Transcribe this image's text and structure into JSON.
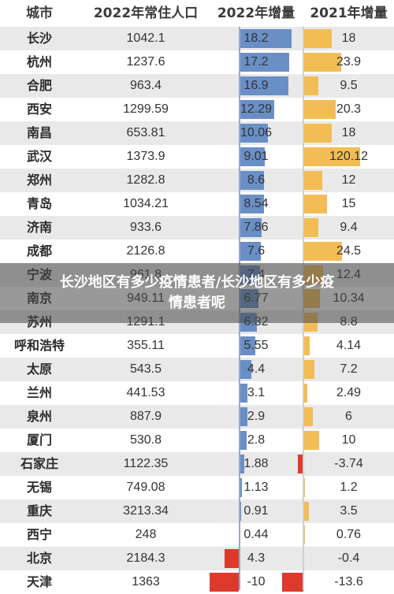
{
  "overlay_title": "长沙地区有多少疫情患者/长沙地区有多少疫情患者呢",
  "chart_data": {
    "type": "table",
    "columns": [
      "城市",
      "2022年常住人口",
      "2022年增量",
      "2021年增量"
    ],
    "rows": [
      {
        "city": "长沙",
        "pop_2022": "1042.1",
        "inc_2022": 18.2,
        "inc_2021": 18
      },
      {
        "city": "杭州",
        "pop_2022": "1237.6",
        "inc_2022": 17.2,
        "inc_2021": 23.9
      },
      {
        "city": "合肥",
        "pop_2022": "963.4",
        "inc_2022": 16.9,
        "inc_2021": 9.5
      },
      {
        "city": "西安",
        "pop_2022": "1299.59",
        "inc_2022": 12.29,
        "inc_2021": 20.3
      },
      {
        "city": "南昌",
        "pop_2022": "653.81",
        "inc_2022": 10.06,
        "inc_2021": 18
      },
      {
        "city": "武汉",
        "pop_2022": "1373.9",
        "inc_2022": 9.01,
        "inc_2021": 120.12
      },
      {
        "city": "郑州",
        "pop_2022": "1282.8",
        "inc_2022": 8.6,
        "inc_2021": 12
      },
      {
        "city": "青岛",
        "pop_2022": "1034.21",
        "inc_2022": 8.54,
        "inc_2021": 15
      },
      {
        "city": "济南",
        "pop_2022": "933.6",
        "inc_2022": 7.86,
        "inc_2021": 9.4
      },
      {
        "city": "成都",
        "pop_2022": "2126.8",
        "inc_2022": 7.6,
        "inc_2021": 24.5
      },
      {
        "city": "宁波",
        "pop_2022": "961.8",
        "inc_2022": 7.4,
        "inc_2021": 12.4
      },
      {
        "city": "南京",
        "pop_2022": "949.11",
        "inc_2022": 6.77,
        "inc_2021": 10.34
      },
      {
        "city": "苏州",
        "pop_2022": "1291.1",
        "inc_2022": 6.32,
        "inc_2021": 8.8
      },
      {
        "city": "呼和浩特",
        "pop_2022": "355.11",
        "inc_2022": 5.55,
        "inc_2021": 4.14
      },
      {
        "city": "太原",
        "pop_2022": "543.5",
        "inc_2022": 4.4,
        "inc_2021": 7.2
      },
      {
        "city": "兰州",
        "pop_2022": "441.53",
        "inc_2022": 3.1,
        "inc_2021": 2.49
      },
      {
        "city": "泉州",
        "pop_2022": "887.9",
        "inc_2022": 2.9,
        "inc_2021": 6
      },
      {
        "city": "厦门",
        "pop_2022": "530.8",
        "inc_2022": 2.8,
        "inc_2021": 10
      },
      {
        "city": "石家庄",
        "pop_2022": "1122.35",
        "inc_2022": 1.88,
        "inc_2021": -3.74
      },
      {
        "city": "无锡",
        "pop_2022": "749.08",
        "inc_2022": 1.13,
        "inc_2021": 1.2
      },
      {
        "city": "重庆",
        "pop_2022": "3213.34",
        "inc_2022": 0.91,
        "inc_2021": 3.5
      },
      {
        "city": "西宁",
        "pop_2022": "248",
        "inc_2022": 0.44,
        "inc_2021": 0.76
      },
      {
        "city": "北京",
        "pop_2022": "2184.3",
        "inc_2022": 4.3,
        "inc_2021": -0.4
      },
      {
        "city": "天津",
        "pop_2022": "1363",
        "inc_2022": -10,
        "inc_2021": -13.6
      }
    ],
    "inc_2022_labels": [
      "18.2",
      "17.2",
      "16.9",
      "12.29",
      "10.06",
      "9.01",
      "8.6",
      "8.54",
      "7.86",
      "7.6",
      "7.4",
      "6.77",
      "6.32",
      "5.55",
      "4.4",
      "3.1",
      "2.9",
      "2.8",
      "1.88",
      "1.13",
      "0.91",
      "0.44",
      "4.3",
      "-10"
    ],
    "inc_2021_labels": [
      "18",
      "23.9",
      "9.5",
      "20.3",
      "18",
      "120.12",
      "12",
      "15",
      "9.4",
      "24.5",
      "12.4",
      "10.34",
      "8.8",
      "4.14",
      "7.2",
      "2.49",
      "6",
      "10",
      "-3.74",
      "1.2",
      "3.5",
      "0.76",
      "-0.4",
      "-13.6"
    ],
    "colors": {
      "bar_2022": "#6a8fc7",
      "bar_2021": "#f3bd55",
      "negative": "#dd3a2c"
    }
  }
}
